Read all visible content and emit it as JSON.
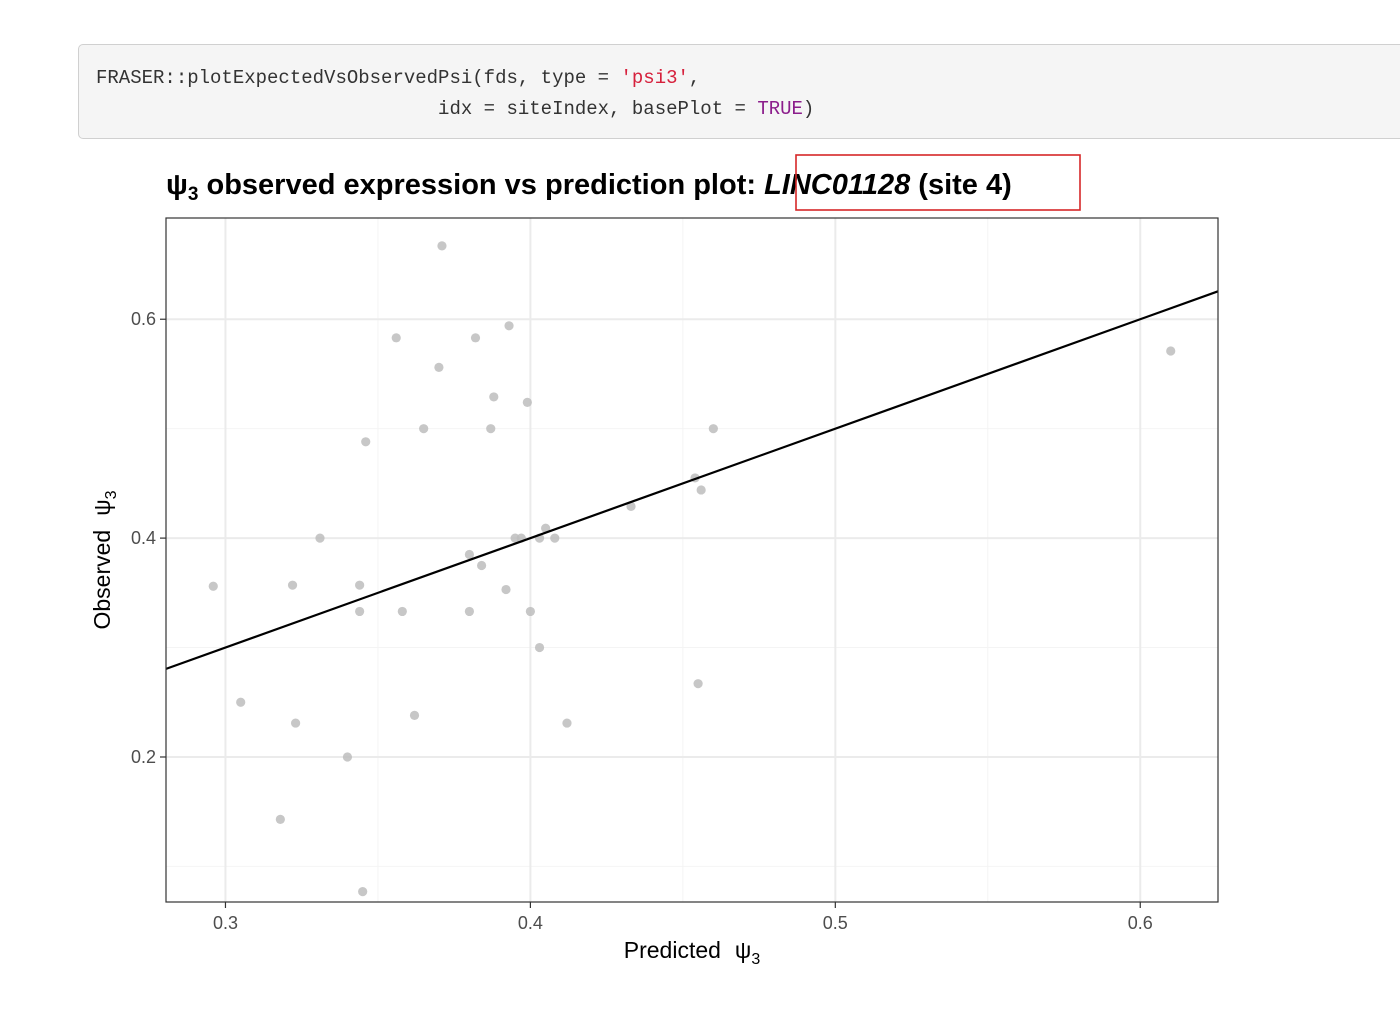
{
  "code": {
    "line1": {
      "plain": "FRASER::plotExpectedVsObservedPsi(fds, type = ",
      "str": "'psi3'",
      "tail": ","
    },
    "line2": {
      "plain": "                              idx = siteIndex, basePlot = ",
      "kw": "TRUE",
      "tail": ")"
    }
  },
  "colors": {
    "point": "#bdbdbd",
    "line": "#000000",
    "grid_major": "#ebebeb",
    "grid_minor": "#f4f4f4",
    "highlight_box": "#d62728",
    "string": "#d6203c",
    "keyword": "#8c1e8c"
  },
  "chart_data": {
    "type": "scatter",
    "title": {
      "psi_symbol": "ψ",
      "psi_subscript": "3",
      "main": " observed expression vs prediction plot: ",
      "gene": "LINC01128",
      "site": " (site 4)"
    },
    "xlabel": {
      "text": "Predicted",
      "symbol": "ψ",
      "subscript": "3"
    },
    "ylabel": {
      "text": "Observed",
      "symbol": "ψ",
      "subscript": "3"
    },
    "xlim": [
      0.2805,
      0.6255
    ],
    "ylim": [
      0.0675,
      0.6925
    ],
    "x_ticks": [
      0.3,
      0.4,
      0.5,
      0.6
    ],
    "x_tick_labels": [
      "0.3",
      "0.4",
      "0.5",
      "0.6"
    ],
    "y_ticks": [
      0.2,
      0.4,
      0.6
    ],
    "y_tick_labels": [
      "0.2",
      "0.4",
      "0.6"
    ],
    "x_minor": [
      0.35,
      0.45,
      0.55
    ],
    "y_minor": [
      0.1,
      0.3,
      0.5
    ],
    "reference_line": {
      "type": "identity",
      "slope": 1,
      "intercept": 0
    },
    "points": [
      [
        0.296,
        0.356
      ],
      [
        0.305,
        0.25
      ],
      [
        0.318,
        0.143
      ],
      [
        0.322,
        0.357
      ],
      [
        0.323,
        0.231
      ],
      [
        0.331,
        0.4
      ],
      [
        0.34,
        0.2
      ],
      [
        0.344,
        0.357
      ],
      [
        0.344,
        0.333
      ],
      [
        0.345,
        0.077
      ],
      [
        0.346,
        0.488
      ],
      [
        0.356,
        0.583
      ],
      [
        0.358,
        0.333
      ],
      [
        0.362,
        0.238
      ],
      [
        0.365,
        0.5
      ],
      [
        0.37,
        0.556
      ],
      [
        0.371,
        0.667
      ],
      [
        0.38,
        0.385
      ],
      [
        0.38,
        0.333
      ],
      [
        0.382,
        0.583
      ],
      [
        0.384,
        0.375
      ],
      [
        0.387,
        0.5
      ],
      [
        0.388,
        0.529
      ],
      [
        0.392,
        0.353
      ],
      [
        0.393,
        0.594
      ],
      [
        0.395,
        0.4
      ],
      [
        0.397,
        0.4
      ],
      [
        0.399,
        0.524
      ],
      [
        0.4,
        0.333
      ],
      [
        0.403,
        0.4
      ],
      [
        0.403,
        0.3
      ],
      [
        0.405,
        0.409
      ],
      [
        0.408,
        0.4
      ],
      [
        0.412,
        0.231
      ],
      [
        0.433,
        0.429
      ],
      [
        0.454,
        0.455
      ],
      [
        0.455,
        0.267
      ],
      [
        0.456,
        0.444
      ],
      [
        0.46,
        0.5
      ],
      [
        0.61,
        0.571
      ]
    ]
  }
}
